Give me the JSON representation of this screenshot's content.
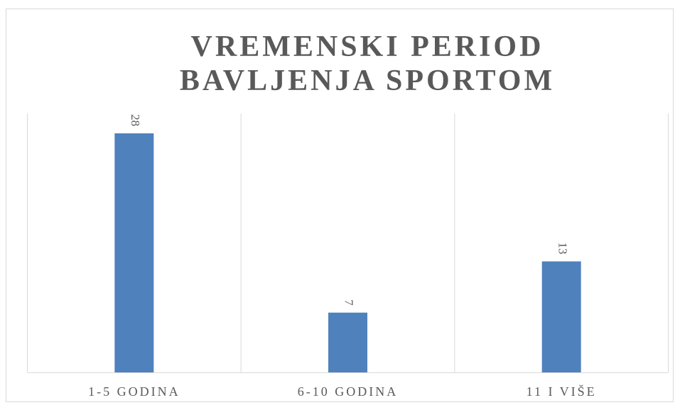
{
  "chart_data": {
    "type": "bar",
    "title": "VREMENSKI PERIOD BAVLJENJA SPORTOM",
    "categories": [
      "1-5 GODINA",
      "6-10 GODINA",
      "11 I VIŠE"
    ],
    "values": [
      28,
      7,
      13
    ],
    "color": "#4f81bd"
  }
}
